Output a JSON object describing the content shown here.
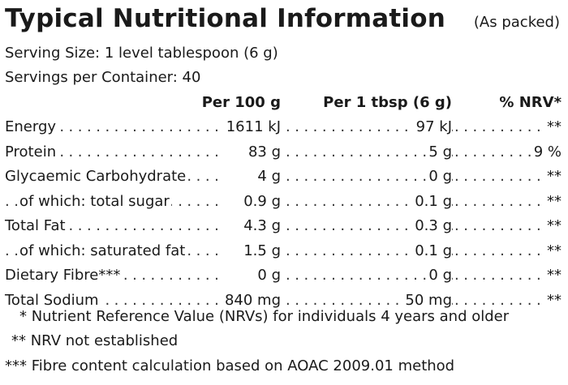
{
  "header": {
    "title": "Typical Nutritional Information",
    "qualifier": "(As packed)"
  },
  "serving": {
    "size": "Serving Size: 1 level tablespoon (6 g)",
    "per_container": "Servings per Container: 40"
  },
  "columns": {
    "per_100g": "Per 100 g",
    "per_serving": "Per 1 tbsp (6 g)",
    "nrv": "% NRV*"
  },
  "rows": [
    {
      "label": "Energy",
      "per_100g": "1611 kJ",
      "per_serving": "97 kJ",
      "nrv": "**"
    },
    {
      "label": "Protein",
      "per_100g": "83 g",
      "per_serving": "5 g",
      "nrv": "9 %"
    },
    {
      "label": "Glycaemic Carbohydrate",
      "per_100g": "4 g",
      "per_serving": "0 g",
      "nrv": "**"
    },
    {
      "label": "of which: total sugar",
      "per_100g": "0.9 g",
      "per_serving": "0.1 g",
      "nrv": "**"
    },
    {
      "label": "Total Fat",
      "per_100g": "4.3 g",
      "per_serving": "0.3 g",
      "nrv": "**"
    },
    {
      "label": "of which: saturated fat",
      "per_100g": "1.5 g",
      "per_serving": "0.1 g",
      "nrv": "**"
    },
    {
      "label": "Dietary Fibre***",
      "per_100g": "0 g",
      "per_serving": "0 g",
      "nrv": "**"
    },
    {
      "label": "Total Sodium",
      "per_100g": "840 mg",
      "per_serving": "50 mg",
      "nrv": "**"
    }
  ],
  "footnotes": {
    "nrv_note": "* Nutrient Reference Value (NRVs) for individuals 4 years and older",
    "not_established": "** NRV not established",
    "fibre_note": "*** Fibre content calculation based on AOAC 2009.01 method"
  }
}
